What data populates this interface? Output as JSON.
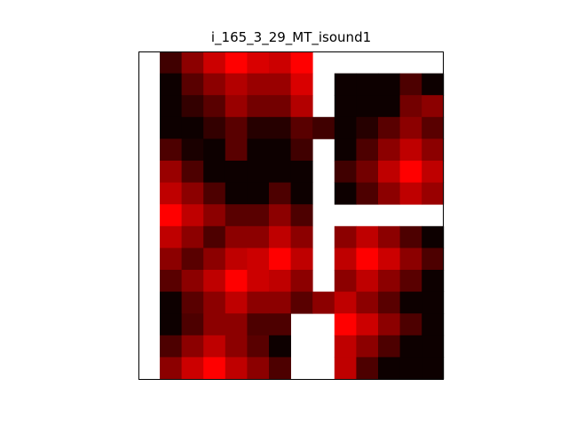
{
  "chart_data": {
    "type": "heatmap",
    "title": "i_165_3_29_MT_isound1",
    "xlabel": "",
    "ylabel": "",
    "colormap": "black-to-red",
    "empty_color": "#ffffff",
    "grid": false,
    "show_ticks": false,
    "rows": 15,
    "cols": 14,
    "values": [
      [
        null,
        0.25,
        0.55,
        0.8,
        1.0,
        0.85,
        0.8,
        1.0,
        null,
        null,
        null,
        null,
        null,
        null
      ],
      [
        null,
        0.05,
        0.35,
        0.55,
        0.7,
        0.6,
        0.6,
        0.85,
        null,
        0.05,
        0.05,
        0.05,
        0.3,
        0.05
      ],
      [
        null,
        0.05,
        0.2,
        0.35,
        0.6,
        0.45,
        0.45,
        0.7,
        null,
        0.05,
        0.05,
        0.05,
        0.45,
        0.55
      ],
      [
        null,
        0.05,
        0.05,
        0.2,
        0.35,
        0.15,
        0.15,
        0.35,
        0.25,
        0.05,
        0.15,
        0.35,
        0.55,
        0.35
      ],
      [
        null,
        0.3,
        0.1,
        0.05,
        0.35,
        0.05,
        0.05,
        0.25,
        null,
        0.05,
        0.3,
        0.55,
        0.75,
        0.55
      ],
      [
        null,
        0.6,
        0.3,
        0.05,
        0.05,
        0.05,
        0.05,
        0.05,
        null,
        0.25,
        0.45,
        0.75,
        1.0,
        0.75
      ],
      [
        null,
        0.75,
        0.55,
        0.3,
        0.05,
        0.05,
        0.3,
        0.05,
        null,
        0.05,
        0.3,
        0.55,
        0.75,
        0.6
      ],
      [
        null,
        1.0,
        0.75,
        0.55,
        0.35,
        0.35,
        0.55,
        0.3,
        null,
        null,
        null,
        null,
        null,
        null
      ],
      [
        null,
        0.75,
        0.55,
        0.3,
        0.55,
        0.55,
        0.75,
        0.55,
        null,
        0.55,
        0.75,
        0.55,
        0.3,
        0.05
      ],
      [
        null,
        0.55,
        0.35,
        0.55,
        0.75,
        0.8,
        1.0,
        0.75,
        null,
        0.75,
        1.0,
        0.8,
        0.55,
        0.3
      ],
      [
        null,
        0.35,
        0.55,
        0.75,
        1.0,
        0.8,
        0.75,
        0.55,
        null,
        0.55,
        0.75,
        0.55,
        0.35,
        0.05
      ],
      [
        null,
        0.05,
        0.35,
        0.55,
        0.75,
        0.55,
        0.55,
        0.35,
        0.55,
        0.75,
        0.55,
        0.35,
        0.05,
        0.05
      ],
      [
        null,
        0.05,
        0.3,
        0.55,
        0.55,
        0.3,
        0.3,
        null,
        null,
        1.0,
        0.8,
        0.55,
        0.3,
        0.05
      ],
      [
        null,
        0.3,
        0.55,
        0.75,
        0.55,
        0.35,
        0.05,
        null,
        null,
        0.75,
        0.55,
        0.3,
        0.05,
        0.05
      ],
      [
        null,
        0.55,
        0.8,
        1.0,
        0.75,
        0.55,
        0.3,
        null,
        null,
        0.75,
        0.3,
        0.05,
        0.05,
        0.05
      ]
    ]
  }
}
